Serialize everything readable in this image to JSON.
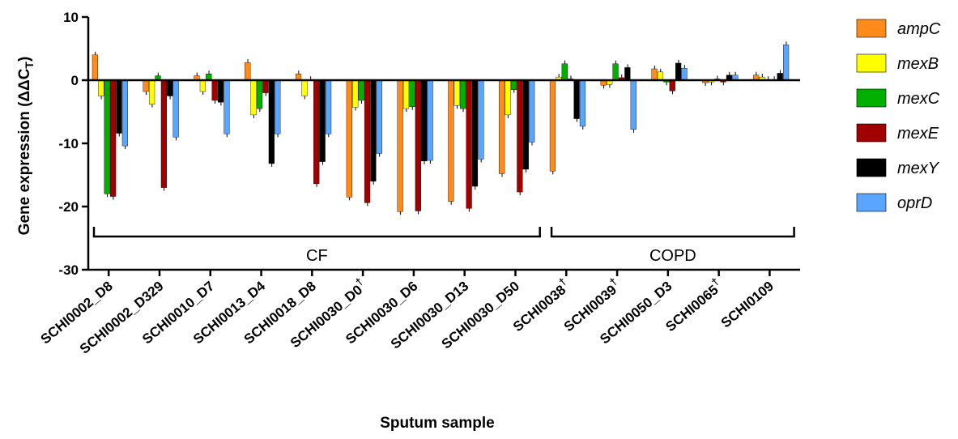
{
  "chart_data": {
    "type": "bar",
    "xlabel": "Sputum sample",
    "ylabel_main": "Gene expression (ΔΔC",
    "ylabel_sub": "T",
    "ylabel_close": ")",
    "ylim": [
      -30,
      10
    ],
    "yticks": [
      "10",
      "0",
      "-10",
      "-20",
      "-30"
    ],
    "categories": [
      {
        "label": "SCHI0002_D8",
        "dagger": ""
      },
      {
        "label": "SCHI0002_D329",
        "dagger": ""
      },
      {
        "label": "SCHI0010_D7",
        "dagger": ""
      },
      {
        "label": "SCHI0013_D4",
        "dagger": ""
      },
      {
        "label": "SCHI0018_D8",
        "dagger": ""
      },
      {
        "label": "SCHI0030_D0",
        "dagger": "†"
      },
      {
        "label": "SCHI0030_D6",
        "dagger": ""
      },
      {
        "label": "SCHI0030_D13",
        "dagger": ""
      },
      {
        "label": "SCHI0030_D50",
        "dagger": ""
      },
      {
        "label": "SCHI0038",
        "dagger": "†"
      },
      {
        "label": "SCHI0039",
        "dagger": "†"
      },
      {
        "label": "SCHI0050_D3",
        "dagger": ""
      },
      {
        "label": "SCHI0065",
        "dagger": "†"
      },
      {
        "label": "SCHI0109",
        "dagger": ""
      }
    ],
    "series": [
      {
        "name": "ampC",
        "color": "#FF8C1A",
        "values": [
          4.0,
          -1.8,
          0.7,
          2.8,
          1.0,
          -18.5,
          -20.8,
          -19.2,
          -14.8,
          -14.4,
          -0.8,
          1.8,
          -0.4,
          0.8
        ]
      },
      {
        "name": "mexB",
        "color": "#FFFF00",
        "values": [
          -2.5,
          -3.8,
          -1.8,
          -5.5,
          -2.5,
          -4.3,
          -4.5,
          -4.0,
          -5.5,
          0.5,
          -0.7,
          1.3,
          -0.3,
          0.5
        ]
      },
      {
        "name": "mexC",
        "color": "#00B000",
        "values": [
          -18.0,
          0.7,
          1.0,
          -4.5,
          0.1,
          -3.2,
          -4.2,
          -4.5,
          -1.5,
          2.6,
          2.6,
          -0.3,
          0.2,
          0.1
        ]
      },
      {
        "name": "mexE",
        "color": "#A00000",
        "values": [
          -18.4,
          -17.0,
          -3.2,
          -2.0,
          -16.4,
          -19.4,
          -20.7,
          -20.3,
          -17.7,
          0.2,
          0.4,
          -1.7,
          -0.3,
          0.1
        ]
      },
      {
        "name": "mexY",
        "color": "#000000",
        "values": [
          -8.4,
          -2.5,
          -3.5,
          -13.2,
          -12.9,
          -16.0,
          -12.8,
          -16.8,
          -14.1,
          -6.1,
          2.0,
          2.7,
          0.8,
          1.1
        ]
      },
      {
        "name": "oprD",
        "color": "#5AA5FF",
        "values": [
          -10.4,
          -9.0,
          -8.5,
          -8.5,
          -8.5,
          -11.6,
          -12.7,
          -12.5,
          -9.8,
          -7.3,
          -7.8,
          1.9,
          0.8,
          5.6
        ]
      }
    ],
    "groups": [
      {
        "label": "CF",
        "from": 0,
        "to": 8
      },
      {
        "label": "COPD",
        "from": 9,
        "to": 13
      }
    ],
    "legend_position": "right"
  }
}
